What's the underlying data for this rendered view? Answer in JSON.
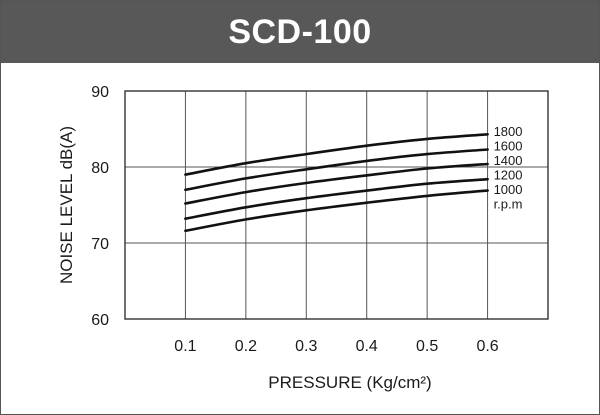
{
  "header": {
    "title": "SCD-100"
  },
  "chart_data": {
    "type": "line",
    "title": "SCD-100",
    "xlabel": "PRESSURE  (Kg/cm²)",
    "ylabel": "NOISE LEVEL dB(A)",
    "xlim": [
      0,
      0.7
    ],
    "ylim": [
      60,
      90
    ],
    "x_ticks": [
      0.1,
      0.2,
      0.3,
      0.4,
      0.5,
      0.6
    ],
    "x_tick_labels": [
      "0.1",
      "0.2",
      "0.3",
      "0.4",
      "0.5",
      "0.6"
    ],
    "y_ticks": [
      60,
      70,
      80,
      90
    ],
    "y_tick_labels": [
      "60",
      "70",
      "80",
      "90"
    ],
    "grid": true,
    "legend_unit": "r.p.m",
    "x": [
      0.1,
      0.2,
      0.3,
      0.4,
      0.5,
      0.6
    ],
    "series": [
      {
        "name": "1800",
        "values": [
          79.0,
          80.5,
          81.7,
          82.8,
          83.7,
          84.3
        ]
      },
      {
        "name": "1600",
        "values": [
          77.0,
          78.5,
          79.7,
          80.8,
          81.7,
          82.3
        ]
      },
      {
        "name": "1400",
        "values": [
          75.2,
          76.7,
          77.9,
          78.9,
          79.8,
          80.4
        ]
      },
      {
        "name": "1200",
        "values": [
          73.2,
          74.7,
          75.9,
          76.9,
          77.8,
          78.4
        ]
      },
      {
        "name": "1000",
        "values": [
          71.6,
          73.1,
          74.3,
          75.3,
          76.2,
          76.9
        ]
      }
    ]
  }
}
